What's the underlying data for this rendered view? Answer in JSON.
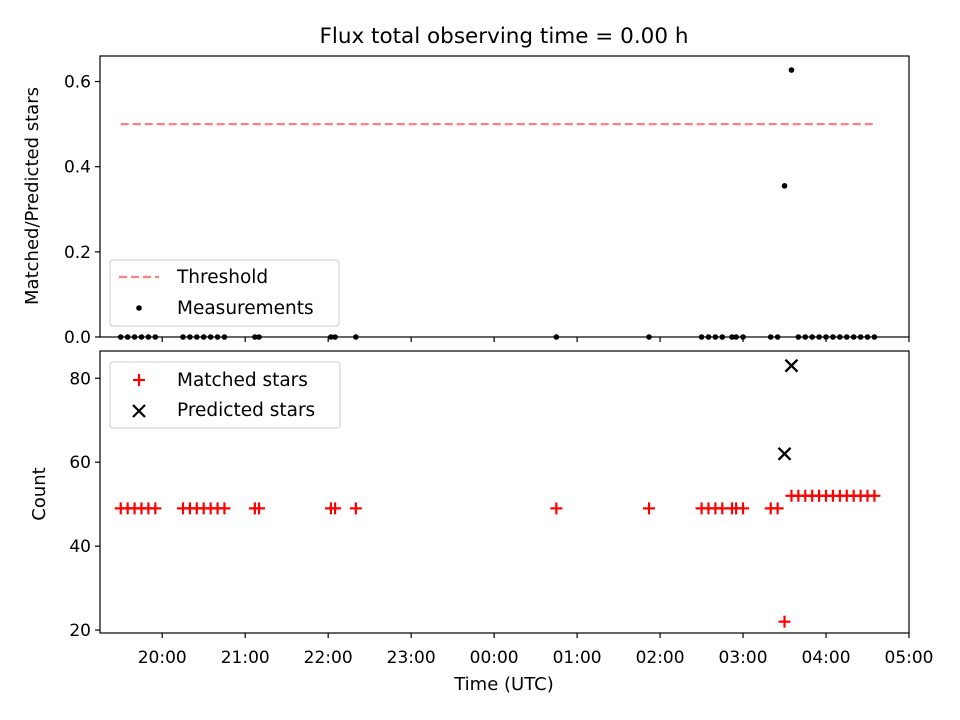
{
  "chart_data": [
    {
      "type": "scatter",
      "title": "Flux total observing time = 0.00 h",
      "xlabel": "",
      "ylabel": "Matched/Predicted stars",
      "ylim": [
        0.0,
        0.66
      ],
      "xlim": [
        "19:15",
        "05:00"
      ],
      "yticks": [
        0.0,
        0.2,
        0.4,
        0.6
      ],
      "ytick_labels": [
        "0.0",
        "0.2",
        "0.4",
        "0.6"
      ],
      "grid": false,
      "legend": {
        "placement": "lower-left",
        "entries": [
          "Threshold",
          "Measurements"
        ]
      },
      "threshold": {
        "name": "Threshold",
        "value": 0.5,
        "x_start": "19:30",
        "x_end": "04:35",
        "color": "#ff7f7f",
        "style": "dashed"
      },
      "series": [
        {
          "name": "Measurements",
          "marker": "dot",
          "color": "#000000",
          "x": [
            "19:30",
            "19:35",
            "19:40",
            "19:45",
            "19:50",
            "19:55",
            "20:15",
            "20:20",
            "20:25",
            "20:30",
            "20:35",
            "20:40",
            "20:45",
            "21:07",
            "21:10",
            "22:02",
            "22:05",
            "22:20",
            "00:45",
            "01:52",
            "02:30",
            "02:35",
            "02:40",
            "02:45",
            "02:52",
            "02:55",
            "03:00",
            "03:20",
            "03:25",
            "03:30",
            "03:35",
            "03:40",
            "03:45",
            "03:50",
            "03:55",
            "04:00",
            "04:05",
            "04:10",
            "04:15",
            "04:20",
            "04:25",
            "04:30",
            "04:35"
          ],
          "y": [
            0,
            0,
            0,
            0,
            0,
            0,
            0,
            0,
            0,
            0,
            0,
            0,
            0,
            0,
            0,
            0,
            0,
            0,
            0,
            0,
            0,
            0,
            0,
            0,
            0,
            0,
            0,
            0,
            0,
            0.355,
            0.627,
            0,
            0,
            0,
            0,
            0,
            0,
            0,
            0,
            0,
            0,
            0,
            0
          ]
        }
      ]
    },
    {
      "type": "scatter",
      "title": "",
      "xlabel": "Time (UTC)",
      "ylabel": "Count",
      "ylim": [
        19.3,
        86.5
      ],
      "yticks": [
        20,
        40,
        60,
        80
      ],
      "ytick_labels": [
        "20",
        "40",
        "60",
        "80"
      ],
      "xticks": [
        "20:00",
        "21:00",
        "22:00",
        "23:00",
        "00:00",
        "01:00",
        "02:00",
        "03:00",
        "04:00",
        "05:00"
      ],
      "xtick_labels": [
        "20:00",
        "21:00",
        "22:00",
        "23:00",
        "00:00",
        "01:00",
        "02:00",
        "03:00",
        "04:00",
        "05:00"
      ],
      "grid": false,
      "legend": {
        "placement": "top-left",
        "entries": [
          "Matched stars",
          "Predicted stars"
        ]
      },
      "series": [
        {
          "name": "Matched stars",
          "marker": "plus",
          "color": "#ff0000",
          "x": [
            "19:30",
            "19:35",
            "19:40",
            "19:45",
            "19:50",
            "19:55",
            "20:15",
            "20:20",
            "20:25",
            "20:30",
            "20:35",
            "20:40",
            "20:45",
            "21:07",
            "21:10",
            "22:02",
            "22:05",
            "22:20",
            "00:45",
            "01:52",
            "02:30",
            "02:35",
            "02:40",
            "02:45",
            "02:52",
            "02:55",
            "03:00",
            "03:20",
            "03:25",
            "03:30",
            "03:35",
            "03:40",
            "03:45",
            "03:50",
            "03:55",
            "04:00",
            "04:05",
            "04:10",
            "04:15",
            "04:20",
            "04:25",
            "04:30",
            "04:35"
          ],
          "y": [
            49,
            49,
            49,
            49,
            49,
            49,
            49,
            49,
            49,
            49,
            49,
            49,
            49,
            49,
            49,
            49,
            49,
            49,
            49,
            49,
            49,
            49,
            49,
            49,
            49,
            49,
            49,
            49,
            49,
            22,
            52,
            52,
            52,
            52,
            52,
            52,
            52,
            52,
            52,
            52,
            52,
            52,
            52
          ]
        },
        {
          "name": "Predicted stars",
          "marker": "x",
          "color": "#000000",
          "x": [
            "03:30",
            "03:35"
          ],
          "y": [
            62,
            83
          ]
        }
      ]
    }
  ]
}
